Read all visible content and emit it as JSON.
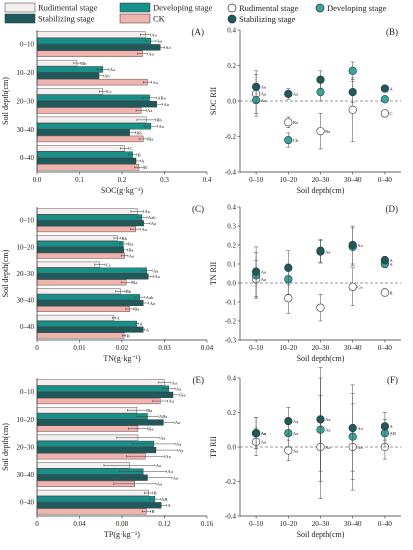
{
  "legend": [
    {
      "key": "rudimental",
      "label": "Rudimental stage",
      "bar_color": "#f6efef",
      "dot_color": "#ffffff"
    },
    {
      "key": "developing",
      "label": "Developing stage",
      "bar_color": "#18908a",
      "dot_color": "#37a79d"
    },
    {
      "key": "stabilizing",
      "label": "Stabilizing stage",
      "bar_color": "#1e5a5c",
      "dot_color": "#1e5a5c"
    },
    {
      "key": "ck",
      "label": "CK",
      "bar_color": "#f0b3ae"
    }
  ],
  "chart_data": [
    {
      "type": "bar",
      "orientation": "horizontal",
      "panel": "(A)",
      "categories": [
        "0–10",
        "10–20",
        "20–30",
        "30–40",
        "0–40"
      ],
      "xlabel": "SOC(g·kg⁻¹)",
      "ylabel": "Soil depth(cm)",
      "xlim": [
        0,
        0.4
      ],
      "xticks": [
        "0.0",
        "0.1",
        "0.2",
        "0.3",
        "0.4"
      ],
      "series": [
        {
          "key": "rudimental",
          "values": [
            0.255,
            0.094,
            0.155,
            0.257,
            0.206
          ],
          "err": [
            0.012,
            0.008,
            0.008,
            0.022,
            0.01
          ],
          "labels": [
            "Aa",
            "Bb",
            "Cc",
            "Bb",
            "C"
          ]
        },
        {
          "key": "developing",
          "values": [
            0.268,
            0.155,
            0.265,
            0.268,
            0.225
          ],
          "err": [
            0.012,
            0.014,
            0.016,
            0.016,
            0.01
          ],
          "labels": [
            "Aa",
            "Aa",
            "ABa",
            "Aa",
            "B"
          ]
        },
        {
          "key": "stabilizing",
          "values": [
            0.29,
            0.146,
            0.282,
            0.218,
            0.233
          ],
          "err": [
            0.01,
            0.01,
            0.014,
            0.014,
            0.01
          ],
          "labels": [
            "Aa",
            "Ab",
            "Aa",
            "Bb",
            "A"
          ]
        },
        {
          "key": "ck",
          "values": [
            0.248,
            0.26,
            0.245,
            0.25,
            0.24
          ],
          "err": [
            0.012,
            0.01,
            0.012,
            0.01,
            0.01
          ],
          "labels": [
            "Aa",
            "Aa",
            "Aa",
            "Ba",
            "B"
          ]
        }
      ]
    },
    {
      "type": "scatter",
      "panel": "(B)",
      "categories": [
        "0–10",
        "10–20",
        "20–30",
        "30–40",
        "0–40"
      ],
      "xlabel": "Soil depth(cm)",
      "ylabel": "SOC RII",
      "ylim": [
        -0.4,
        0.4
      ],
      "yticks": [
        "-0.4",
        "-0.2",
        "0.0",
        "0.2",
        "0.4"
      ],
      "series": [
        {
          "key": "rudimental",
          "values": [
            0.04,
            -0.12,
            -0.17,
            -0.05,
            -0.07
          ],
          "err": [
            0.11,
            0.03,
            0.1,
            0.18,
            0.02
          ],
          "labels": [
            "Aa",
            "Ba",
            "Ba",
            "",
            "C"
          ]
        },
        {
          "key": "developing",
          "values": [
            0.005,
            -0.22,
            0.05,
            0.17,
            0.01
          ],
          "err": [
            0.09,
            0.04,
            0.05,
            0.05,
            0.015
          ],
          "labels": [
            "Aa",
            "Cb",
            "",
            "",
            ""
          ]
        },
        {
          "key": "stabilizing",
          "values": [
            0.08,
            0.04,
            0.12,
            0.05,
            0.07
          ],
          "err": [
            0.09,
            0.03,
            0.05,
            0.06,
            0.01
          ],
          "labels": [
            "Aa",
            "Aa",
            "",
            "",
            "A"
          ]
        }
      ]
    },
    {
      "type": "bar",
      "orientation": "horizontal",
      "panel": "(C)",
      "categories": [
        "0–10",
        "10–20",
        "20–30",
        "30–40",
        "0–40"
      ],
      "xlabel": "TN(g·kg⁻¹)",
      "ylabel": "Soil depth(cm)",
      "xlim": [
        0,
        0.04
      ],
      "xticks": [
        "0",
        "0.01",
        "0.02",
        "0.03",
        "0.04"
      ],
      "series": [
        {
          "key": "rudimental",
          "values": [
            0.0236,
            0.0189,
            0.0148,
            0.0196,
            0.0181
          ],
          "err": [
            0.0015,
            0.0008,
            0.0012,
            0.0011,
            0.0004
          ],
          "labels": [
            "Aa",
            "Bb",
            "Cc",
            "Bb",
            "A"
          ]
        },
        {
          "key": "developing",
          "values": [
            0.0247,
            0.0203,
            0.0258,
            0.0242,
            0.0235
          ],
          "err": [
            0.0012,
            0.0009,
            0.0013,
            0.0012,
            0.0004
          ],
          "labels": [
            "Aab",
            "Ba",
            "Aa",
            "Aab",
            "A"
          ]
        },
        {
          "key": "stabilizing",
          "values": [
            0.0251,
            0.0204,
            0.0262,
            0.025,
            0.025
          ],
          "err": [
            0.0015,
            0.0009,
            0.0012,
            0.0013,
            0.0004
          ],
          "labels": [
            "Aa",
            "Ba",
            "Aa",
            "Aa",
            "A"
          ]
        },
        {
          "key": "ck",
          "values": [
            0.0232,
            0.0206,
            0.021,
            0.0218,
            0.0205
          ],
          "err": [
            0.0012,
            0.0008,
            0.0012,
            0.0009,
            0.0004
          ],
          "labels": [
            "Aa",
            "Aa",
            "Ba",
            "Ba",
            "B"
          ]
        }
      ]
    },
    {
      "type": "scatter",
      "panel": "(D)",
      "categories": [
        "0–10",
        "10–20",
        "20–30",
        "30–40",
        "0–40"
      ],
      "xlabel": "Soil depth(cm)",
      "ylabel": "TN RII",
      "ylim": [
        -0.3,
        0.4
      ],
      "yticks": [
        "-0.3",
        "-0.2",
        "-0.1",
        "0.0",
        "0.1",
        "0.2",
        "0.3",
        "0.4"
      ],
      "series": [
        {
          "key": "rudimental",
          "values": [
            0.02,
            -0.08,
            -0.13,
            -0.02,
            -0.05
          ],
          "err": [
            0.1,
            0.08,
            0.07,
            0.1,
            0.02
          ],
          "labels": [
            "Aa",
            "",
            "",
            "Ca",
            "B"
          ]
        },
        {
          "key": "developing",
          "values": [
            0.04,
            0.02,
            0.165,
            0.19,
            0.1
          ],
          "err": [
            0.12,
            0.08,
            0.06,
            0.1,
            0.02
          ],
          "labels": [
            "",
            "",
            "Aa",
            "",
            "A"
          ]
        },
        {
          "key": "stabilizing",
          "values": [
            0.06,
            0.08,
            0.17,
            0.2,
            0.12
          ],
          "err": [
            0.13,
            0.09,
            0.06,
            0.1,
            0.02
          ],
          "labels": [
            "Aa",
            "",
            "",
            "Aa",
            "A"
          ]
        }
      ]
    },
    {
      "type": "bar",
      "orientation": "horizontal",
      "panel": "(E)",
      "categories": [
        "0–10",
        "10–20",
        "20–30",
        "30–40",
        "0–40"
      ],
      "xlabel": "TP(g·kg⁻¹)",
      "ylabel": "Soil depth(cm)",
      "xlim": [
        0,
        0.16
      ],
      "xticks": [
        "0",
        "0.04",
        "0.08",
        "0.12",
        "0.16"
      ],
      "series": [
        {
          "key": "rudimental",
          "values": [
            0.12,
            0.094,
            0.095,
            0.087,
            0.105
          ],
          "err": [
            0.006,
            0.009,
            0.02,
            0.024,
            0.004
          ],
          "labels": [
            "Aa",
            "Ba",
            "Aa",
            "Aa",
            "B"
          ]
        },
        {
          "key": "developing",
          "values": [
            0.124,
            0.104,
            0.11,
            0.1,
            0.111
          ],
          "err": [
            0.006,
            0.01,
            0.02,
            0.022,
            0.005
          ],
          "labels": [
            "Aa",
            "ABa",
            "Aa",
            "Aa",
            "AB"
          ]
        },
        {
          "key": "stabilizing",
          "values": [
            0.128,
            0.119,
            0.112,
            0.104,
            0.117
          ],
          "err": [
            0.006,
            0.01,
            0.02,
            0.023,
            0.005
          ],
          "labels": [
            "Aa",
            "Aa",
            "Aa",
            "Aa",
            "A"
          ]
        },
        {
          "key": "ck",
          "values": [
            0.116,
            0.095,
            0.102,
            0.092,
            0.103
          ],
          "err": [
            0.007,
            0.009,
            0.018,
            0.02,
            0.004
          ],
          "labels": [
            "Aa",
            "Ba",
            "Aa",
            "Aa",
            "B"
          ]
        }
      ]
    },
    {
      "type": "scatter",
      "panel": "(F)",
      "categories": [
        "0–10",
        "10–20",
        "20–30",
        "30–40",
        "0–40"
      ],
      "xlabel": "Soil depth(cm)",
      "ylabel": "TP RII",
      "ylim": [
        -0.4,
        0.4
      ],
      "yticks": [
        "-0.4",
        "-0.2",
        "0.0",
        "0.2",
        "0.4"
      ],
      "series": [
        {
          "key": "rudimental",
          "values": [
            0.03,
            -0.02,
            0.0,
            0.0,
            0.0
          ],
          "err": [
            0.08,
            0.06,
            0.3,
            0.25,
            0.07
          ],
          "labels": [
            "Aa",
            "Aa",
            "Aa",
            "Aa",
            ""
          ]
        },
        {
          "key": "developing",
          "values": [
            0.08,
            0.08,
            0.1,
            0.06,
            0.08
          ],
          "err": [
            0.09,
            0.08,
            0.3,
            0.25,
            0.08
          ],
          "labels": [
            "Aa",
            "Aa",
            "Aa",
            "",
            "AB"
          ]
        },
        {
          "key": "stabilizing",
          "values": [
            0.08,
            0.15,
            0.16,
            0.11,
            0.12
          ],
          "err": [
            0.09,
            0.08,
            0.3,
            0.25,
            0.08
          ],
          "labels": [
            "Aa",
            "Aa",
            "Aa",
            "Aa",
            "A"
          ]
        }
      ]
    }
  ]
}
